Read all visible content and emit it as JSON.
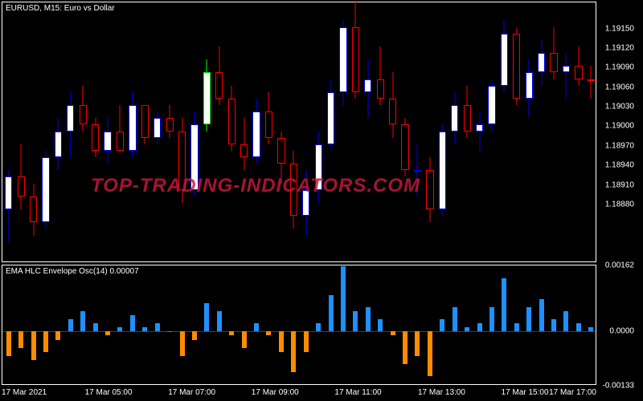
{
  "main_chart": {
    "title": "EURUSD, M15:  Euro vs  Dollar",
    "title_fontsize": 10,
    "background_color": "#000000",
    "border_color": "#ffffff",
    "text_color": "#ffffff",
    "bull_body_color": "#ffffff",
    "bull_border_color": "#0000ff",
    "bear_body_color": "#000000",
    "bear_border_color": "#ff0000",
    "special_bull_color": "#00ff00",
    "ylim": [
      1.1879,
      1.1919
    ],
    "y_ticks": [
      "1.19150",
      "1.19120",
      "1.19090",
      "1.19060",
      "1.19030",
      "1.19000",
      "1.18970",
      "1.18940",
      "1.18910",
      "1.18880"
    ],
    "y_tick_values": [
      1.1915,
      1.1912,
      1.1909,
      1.1906,
      1.1903,
      1.19,
      1.1897,
      1.1894,
      1.1891,
      1.1888
    ],
    "candles": [
      {
        "o": 1.1887,
        "h": 1.1893,
        "l": 1.1882,
        "c": 1.1892,
        "bull": true
      },
      {
        "o": 1.1892,
        "h": 1.1897,
        "l": 1.1887,
        "c": 1.1889,
        "bull": false
      },
      {
        "o": 1.1889,
        "h": 1.1891,
        "l": 1.1883,
        "c": 1.1885,
        "bull": false
      },
      {
        "o": 1.1885,
        "h": 1.1896,
        "l": 1.1884,
        "c": 1.1895,
        "bull": true
      },
      {
        "o": 1.1895,
        "h": 1.1901,
        "l": 1.1893,
        "c": 1.1899,
        "bull": true
      },
      {
        "o": 1.1899,
        "h": 1.1905,
        "l": 1.1895,
        "c": 1.1903,
        "bull": true
      },
      {
        "o": 1.1903,
        "h": 1.1906,
        "l": 1.1899,
        "c": 1.19,
        "bull": false
      },
      {
        "o": 1.19,
        "h": 1.1901,
        "l": 1.1895,
        "c": 1.1896,
        "bull": false
      },
      {
        "o": 1.1896,
        "h": 1.1901,
        "l": 1.1894,
        "c": 1.1899,
        "bull": true
      },
      {
        "o": 1.1899,
        "h": 1.1903,
        "l": 1.1896,
        "c": 1.1896,
        "bull": false
      },
      {
        "o": 1.1896,
        "h": 1.1905,
        "l": 1.1895,
        "c": 1.1903,
        "bull": true
      },
      {
        "o": 1.1903,
        "h": 1.1903,
        "l": 1.1897,
        "c": 1.1898,
        "bull": false
      },
      {
        "o": 1.1898,
        "h": 1.1902,
        "l": 1.1897,
        "c": 1.1901,
        "bull": true
      },
      {
        "o": 1.1901,
        "h": 1.1903,
        "l": 1.1898,
        "c": 1.1899,
        "bull": false
      },
      {
        "o": 1.1899,
        "h": 1.1901,
        "l": 1.1888,
        "c": 1.189,
        "bull": false
      },
      {
        "o": 1.189,
        "h": 1.1902,
        "l": 1.1889,
        "c": 1.19,
        "bull": true
      },
      {
        "o": 1.19,
        "h": 1.191,
        "l": 1.1899,
        "c": 1.1908,
        "bull": true,
        "special": true
      },
      {
        "o": 1.1908,
        "h": 1.1912,
        "l": 1.1903,
        "c": 1.1904,
        "bull": false
      },
      {
        "o": 1.1904,
        "h": 1.1906,
        "l": 1.1896,
        "c": 1.1897,
        "bull": false
      },
      {
        "o": 1.1897,
        "h": 1.1901,
        "l": 1.1893,
        "c": 1.1895,
        "bull": false
      },
      {
        "o": 1.1895,
        "h": 1.1904,
        "l": 1.1894,
        "c": 1.1902,
        "bull": true
      },
      {
        "o": 1.1902,
        "h": 1.1905,
        "l": 1.1897,
        "c": 1.1898,
        "bull": false
      },
      {
        "o": 1.1898,
        "h": 1.1899,
        "l": 1.1891,
        "c": 1.1894,
        "bull": false
      },
      {
        "o": 1.1894,
        "h": 1.1896,
        "l": 1.1884,
        "c": 1.1886,
        "bull": false
      },
      {
        "o": 1.1886,
        "h": 1.1893,
        "l": 1.1883,
        "c": 1.189,
        "bull": true
      },
      {
        "o": 1.189,
        "h": 1.1899,
        "l": 1.1888,
        "c": 1.1897,
        "bull": true
      },
      {
        "o": 1.1897,
        "h": 1.1907,
        "l": 1.1896,
        "c": 1.1905,
        "bull": true
      },
      {
        "o": 1.1905,
        "h": 1.1916,
        "l": 1.1903,
        "c": 1.1915,
        "bull": true
      },
      {
        "o": 1.1915,
        "h": 1.1919,
        "l": 1.1904,
        "c": 1.1905,
        "bull": false
      },
      {
        "o": 1.1905,
        "h": 1.191,
        "l": 1.1901,
        "c": 1.1907,
        "bull": true
      },
      {
        "o": 1.1907,
        "h": 1.1912,
        "l": 1.1903,
        "c": 1.1904,
        "bull": false
      },
      {
        "o": 1.1904,
        "h": 1.1908,
        "l": 1.1898,
        "c": 1.19,
        "bull": false
      },
      {
        "o": 1.19,
        "h": 1.1901,
        "l": 1.1892,
        "c": 1.1893,
        "bull": false
      },
      {
        "o": 1.1893,
        "h": 1.1897,
        "l": 1.1889,
        "c": 1.1893,
        "bull": true
      },
      {
        "o": 1.1893,
        "h": 1.1895,
        "l": 1.1885,
        "c": 1.1887,
        "bull": false
      },
      {
        "o": 1.1887,
        "h": 1.19,
        "l": 1.1886,
        "c": 1.1899,
        "bull": true
      },
      {
        "o": 1.1899,
        "h": 1.1905,
        "l": 1.1897,
        "c": 1.1903,
        "bull": true
      },
      {
        "o": 1.1903,
        "h": 1.1906,
        "l": 1.1898,
        "c": 1.1899,
        "bull": false
      },
      {
        "o": 1.1899,
        "h": 1.1902,
        "l": 1.1896,
        "c": 1.19,
        "bull": true
      },
      {
        "o": 1.19,
        "h": 1.1907,
        "l": 1.1899,
        "c": 1.1906,
        "bull": true
      },
      {
        "o": 1.1906,
        "h": 1.1916,
        "l": 1.1905,
        "c": 1.1914,
        "bull": true
      },
      {
        "o": 1.1914,
        "h": 1.1915,
        "l": 1.1903,
        "c": 1.1904,
        "bull": false
      },
      {
        "o": 1.1904,
        "h": 1.191,
        "l": 1.1901,
        "c": 1.1908,
        "bull": true
      },
      {
        "o": 1.1908,
        "h": 1.1913,
        "l": 1.1906,
        "c": 1.1911,
        "bull": true
      },
      {
        "o": 1.1911,
        "h": 1.1915,
        "l": 1.1907,
        "c": 1.1908,
        "bull": false
      },
      {
        "o": 1.1908,
        "h": 1.1911,
        "l": 1.1904,
        "c": 1.1909,
        "bull": true
      },
      {
        "o": 1.1909,
        "h": 1.1912,
        "l": 1.1906,
        "c": 1.1907,
        "bull": false
      },
      {
        "o": 1.1907,
        "h": 1.1909,
        "l": 1.1904,
        "c": 1.1907,
        "bull": false
      }
    ]
  },
  "oscillator": {
    "title": "EMA HLC Envelope Osc(14) 0.00007",
    "title_fontsize": 10,
    "pos_color": "#1e90ff",
    "neg_color": "#ff8c00",
    "zero_color": "#808080",
    "ylim": [
      -0.00133,
      0.00162
    ],
    "y_ticks": [
      "0.00162",
      "0.0000",
      "-0.00133"
    ],
    "y_tick_values": [
      0.00162,
      0.0,
      -0.00133
    ],
    "values": [
      -0.0006,
      -0.0004,
      -0.0007,
      -0.0005,
      -0.0002,
      0.0003,
      0.0005,
      0.0002,
      -0.0001,
      0.0001,
      0.0004,
      0.0001,
      0.0002,
      0.0,
      -0.0006,
      -0.0002,
      0.0007,
      0.0005,
      -0.0001,
      -0.0004,
      0.0002,
      -0.0001,
      -0.0005,
      -0.001,
      -0.0005,
      0.0002,
      0.0009,
      0.0016,
      0.0005,
      0.0006,
      0.0003,
      -0.0001,
      -0.0008,
      -0.0006,
      -0.0011,
      0.0003,
      0.0006,
      0.0001,
      0.0002,
      0.0006,
      0.0013,
      0.0002,
      0.0006,
      0.0008,
      0.0003,
      0.0005,
      0.0002,
      0.0001
    ]
  },
  "x_axis": {
    "labels": [
      "17 Mar 2021",
      "17 Mar 05:00",
      "17 Mar 07:00",
      "17 Mar 09:00",
      "17 Mar 11:00",
      "17 Mar 13:00",
      "17 Mar 15:00",
      "17 Mar 17:00"
    ],
    "positions_pct": [
      0,
      14,
      28,
      42,
      56,
      70,
      84,
      98
    ]
  },
  "watermark": {
    "text": "TOP-TRADING-INDICATORS.COM",
    "color": "#c4183a",
    "fontsize": 24
  }
}
